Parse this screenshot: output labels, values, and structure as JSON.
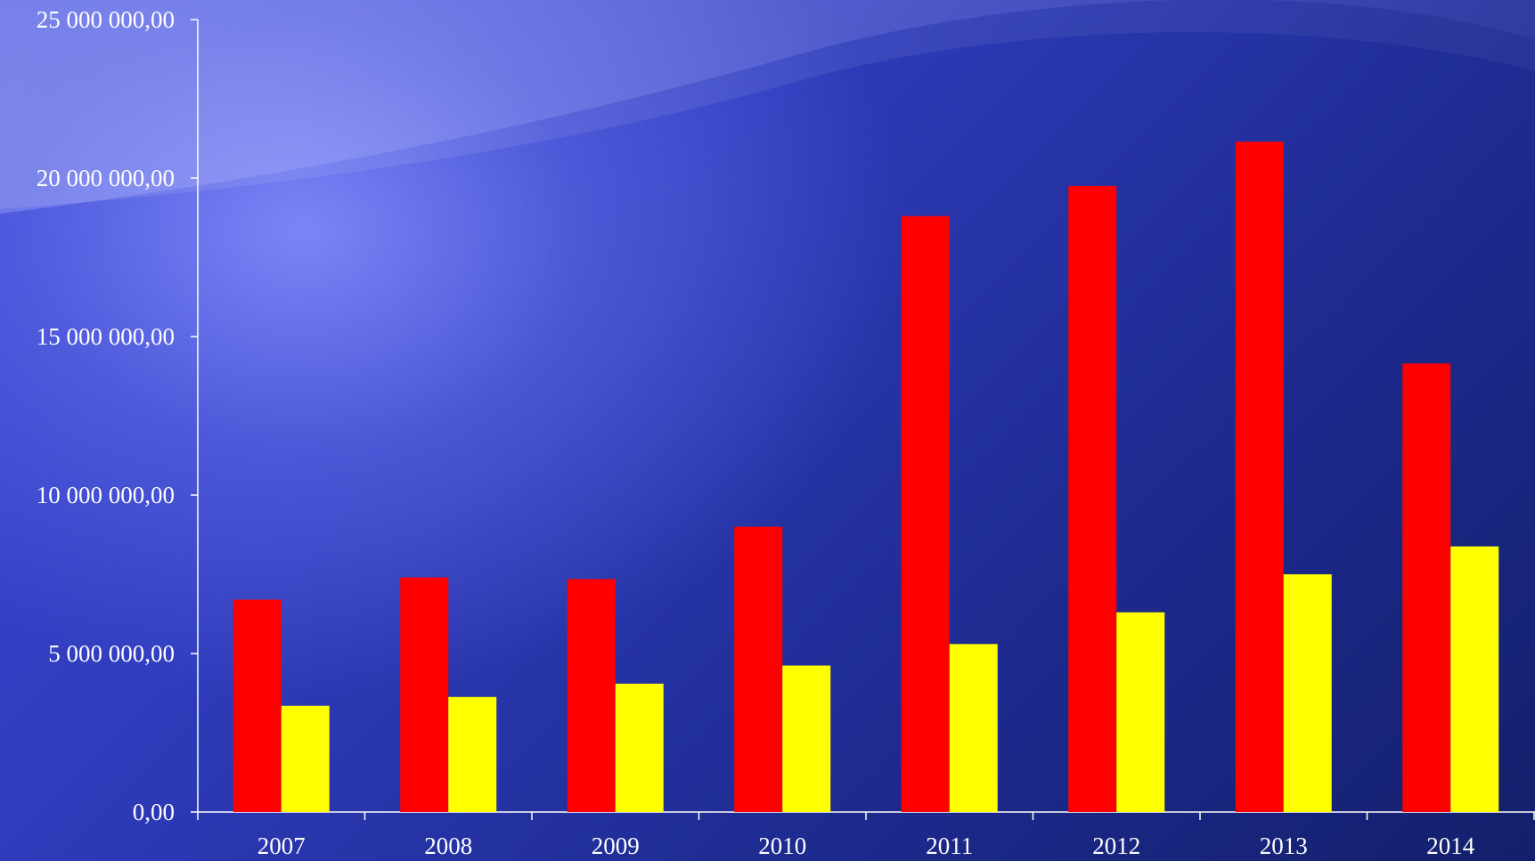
{
  "chart_data": {
    "type": "bar",
    "title": "",
    "xlabel": "",
    "ylabel": "",
    "categories": [
      "2007",
      "2008",
      "2009",
      "2010",
      "2011",
      "2012",
      "2013",
      "2014"
    ],
    "series": [
      {
        "color": "#ff0000",
        "values": [
          6700000,
          7400000,
          7350000,
          9000000,
          18800000,
          19750000,
          21150000,
          14150000
        ]
      },
      {
        "color": "#ffff00",
        "values": [
          3350000,
          3630000,
          4050000,
          4620000,
          5300000,
          6300000,
          7500000,
          8380000
        ]
      }
    ],
    "ylim": [
      0,
      25000000
    ],
    "yticks": [
      0,
      5000000,
      10000000,
      15000000,
      20000000,
      25000000
    ],
    "ytick_labels": [
      "0,00",
      "5 000 000,00",
      "10 000 000,00",
      "15 000 000,00",
      "20 000 000,00",
      "25 000 000,00"
    ],
    "grid": false,
    "legend": "none",
    "axis_color": "#ffffff"
  }
}
